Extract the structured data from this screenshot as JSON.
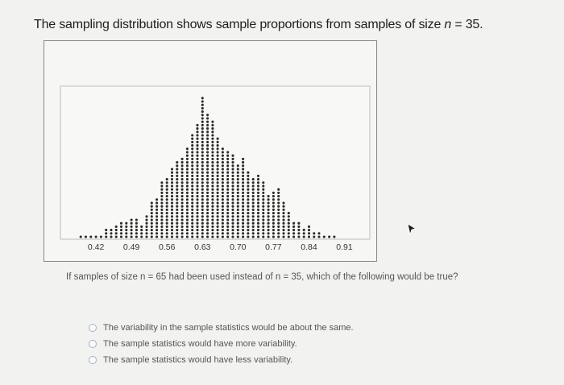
{
  "question": {
    "title_prefix": "The sampling distribution shows sample proportions from samples of size ",
    "title_var": "n",
    "title_suffix": " = 35."
  },
  "chart_data": {
    "type": "dot",
    "x": [
      0.39,
      0.4,
      0.41,
      0.42,
      0.43,
      0.44,
      0.45,
      0.46,
      0.47,
      0.48,
      0.49,
      0.5,
      0.51,
      0.52,
      0.53,
      0.54,
      0.55,
      0.56,
      0.57,
      0.58,
      0.59,
      0.6,
      0.61,
      0.62,
      0.63,
      0.64,
      0.65,
      0.66,
      0.67,
      0.68,
      0.69,
      0.7,
      0.71,
      0.72,
      0.73,
      0.74,
      0.75,
      0.76,
      0.77,
      0.78,
      0.79,
      0.8,
      0.81,
      0.82,
      0.83,
      0.84,
      0.85,
      0.86,
      0.87,
      0.88,
      0.89
    ],
    "counts": [
      1,
      1,
      1,
      1,
      1,
      3,
      3,
      4,
      5,
      5,
      6,
      6,
      4,
      7,
      11,
      12,
      17,
      18,
      21,
      23,
      24,
      27,
      31,
      34,
      42,
      37,
      35,
      30,
      27,
      26,
      25,
      22,
      24,
      20,
      18,
      19,
      17,
      13,
      14,
      15,
      11,
      8,
      5,
      5,
      3,
      4,
      2,
      2,
      1,
      1,
      1
    ],
    "xticks": [
      "0.42",
      "0.49",
      "0.56",
      "0.63",
      "0.70",
      "0.77",
      "0.84",
      "0.91"
    ],
    "xlim": [
      0.35,
      0.96
    ],
    "dot_color": "#2a2a2a"
  },
  "sub_question": "If samples of size n = 65 had been used instead of n = 35, which of the following would be true?",
  "options": [
    {
      "label": "The variability in the sample statistics would be about the same."
    },
    {
      "label": "The sample statistics would have more variability."
    },
    {
      "label": "The sample statistics would have less variability."
    }
  ],
  "icons": {
    "cursor": "mouse-pointer-icon",
    "radio": "radio-button-icon"
  }
}
